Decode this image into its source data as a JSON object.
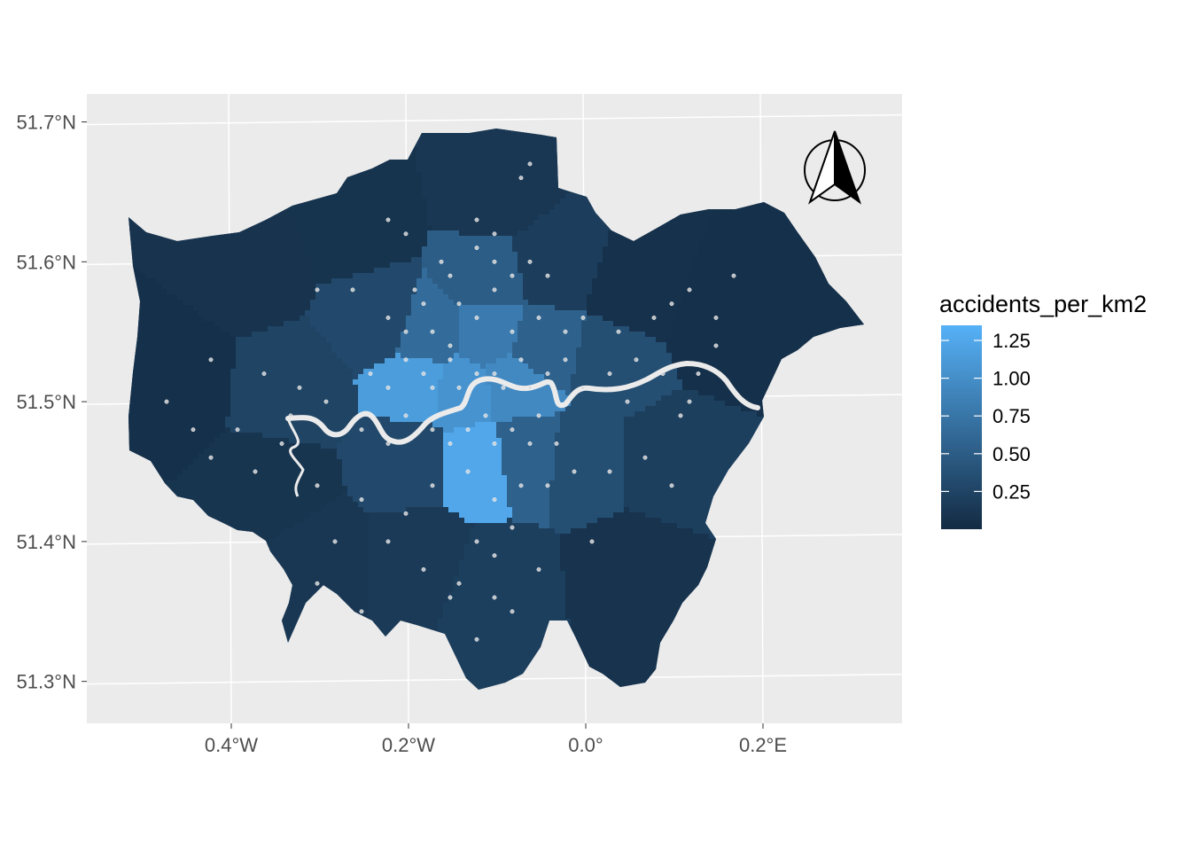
{
  "chart_data": {
    "type": "choropleth",
    "title": "",
    "xlabel": "",
    "ylabel": "",
    "graticule": {
      "lon_labels": [
        "0.4°W",
        "0.2°W",
        "0.0°",
        "0.2°E"
      ],
      "lon_values": [
        -0.4,
        -0.2,
        0.0,
        0.2
      ],
      "lat_labels": [
        "51.7°N",
        "51.6°N",
        "51.5°N",
        "51.4°N",
        "51.3°N"
      ],
      "lat_values": [
        51.7,
        51.6,
        51.5,
        51.4,
        51.3
      ]
    },
    "xlim": [
      -0.56,
      0.36
    ],
    "ylim": [
      51.27,
      51.72
    ],
    "fill_variable": "accidents_per_km2",
    "legend": {
      "title": "accidents_per_km2",
      "position": "right",
      "breaks": [
        "1.25",
        "1.00",
        "0.75",
        "0.50",
        "0.25"
      ],
      "break_values": [
        1.25,
        1.0,
        0.75,
        0.5,
        0.25
      ],
      "range": [
        0.0,
        1.35
      ],
      "color_low": "#132b43",
      "color_high": "#56b1f7"
    },
    "regions": [
      {
        "value": 0.05,
        "lon": -0.47,
        "lat": 51.52
      },
      {
        "value": 0.08,
        "lon": -0.38,
        "lat": 51.6
      },
      {
        "value": 0.09,
        "lon": -0.26,
        "lat": 51.63
      },
      {
        "value": 0.12,
        "lon": -0.1,
        "lat": 51.65
      },
      {
        "value": 0.18,
        "lon": -0.04,
        "lat": 51.6
      },
      {
        "value": 0.06,
        "lon": 0.06,
        "lat": 51.58
      },
      {
        "value": 0.05,
        "lon": 0.15,
        "lat": 51.56
      },
      {
        "value": 0.3,
        "lon": -0.23,
        "lat": 51.56
      },
      {
        "value": 0.5,
        "lon": -0.11,
        "lat": 51.59
      },
      {
        "value": 0.65,
        "lon": -0.18,
        "lat": 51.55
      },
      {
        "value": 0.8,
        "lon": -0.11,
        "lat": 51.55
      },
      {
        "value": 0.55,
        "lon": -0.05,
        "lat": 51.54
      },
      {
        "value": 0.35,
        "lon": 0.03,
        "lat": 51.53
      },
      {
        "value": 1.15,
        "lon": -0.19,
        "lat": 51.515
      },
      {
        "value": 1.05,
        "lon": -0.14,
        "lat": 51.51
      },
      {
        "value": 0.95,
        "lon": -0.08,
        "lat": 51.515
      },
      {
        "value": 0.25,
        "lon": -0.33,
        "lat": 51.51
      },
      {
        "value": 0.3,
        "lon": -0.2,
        "lat": 51.46
      },
      {
        "value": 1.25,
        "lon": -0.12,
        "lat": 51.46
      },
      {
        "value": 0.55,
        "lon": -0.07,
        "lat": 51.465
      },
      {
        "value": 0.35,
        "lon": 0.0,
        "lat": 51.46
      },
      {
        "value": 0.2,
        "lon": 0.09,
        "lat": 51.46
      },
      {
        "value": 0.1,
        "lon": -0.35,
        "lat": 51.44
      },
      {
        "value": 0.12,
        "lon": -0.3,
        "lat": 51.39
      },
      {
        "value": 0.15,
        "lon": -0.19,
        "lat": 51.39
      },
      {
        "value": 0.2,
        "lon": -0.1,
        "lat": 51.37
      },
      {
        "value": 0.08,
        "lon": 0.05,
        "lat": 51.38
      }
    ],
    "accidents": [
      [
        -0.06,
        51.67
      ],
      [
        -0.07,
        51.66
      ],
      [
        -0.12,
        51.63
      ],
      [
        -0.1,
        51.62
      ],
      [
        -0.2,
        51.62
      ],
      [
        -0.22,
        51.63
      ],
      [
        -0.1,
        51.6
      ],
      [
        -0.12,
        51.61
      ],
      [
        -0.08,
        51.59
      ],
      [
        -0.15,
        51.59
      ],
      [
        -0.06,
        51.6
      ],
      [
        -0.04,
        51.59
      ],
      [
        -0.3,
        51.58
      ],
      [
        -0.18,
        51.57
      ],
      [
        -0.14,
        51.57
      ],
      [
        -0.1,
        51.58
      ],
      [
        -0.12,
        51.56
      ],
      [
        -0.2,
        51.55
      ],
      [
        -0.22,
        51.56
      ],
      [
        -0.17,
        51.55
      ],
      [
        -0.15,
        51.54
      ],
      [
        -0.08,
        51.55
      ],
      [
        -0.05,
        51.56
      ],
      [
        -0.02,
        51.55
      ],
      [
        0.0,
        51.56
      ],
      [
        0.08,
        51.56
      ],
      [
        0.1,
        51.57
      ],
      [
        0.12,
        51.58
      ],
      [
        0.15,
        51.56
      ],
      [
        0.17,
        51.59
      ],
      [
        -0.24,
        51.52
      ],
      [
        -0.22,
        51.51
      ],
      [
        -0.2,
        51.53
      ],
      [
        -0.18,
        51.52
      ],
      [
        -0.17,
        51.51
      ],
      [
        -0.15,
        51.53
      ],
      [
        -0.14,
        51.51
      ],
      [
        -0.12,
        51.52
      ],
      [
        -0.1,
        51.52
      ],
      [
        -0.09,
        51.51
      ],
      [
        -0.07,
        51.53
      ],
      [
        -0.06,
        51.51
      ],
      [
        -0.04,
        51.52
      ],
      [
        -0.02,
        51.53
      ],
      [
        0.0,
        51.51
      ],
      [
        0.03,
        51.52
      ],
      [
        0.05,
        51.5
      ],
      [
        0.06,
        51.53
      ],
      [
        0.11,
        51.49
      ],
      [
        0.12,
        51.5
      ],
      [
        0.09,
        51.52
      ],
      [
        0.07,
        51.46
      ],
      [
        0.03,
        51.45
      ],
      [
        0.1,
        51.44
      ],
      [
        -0.36,
        51.52
      ],
      [
        -0.32,
        51.51
      ],
      [
        -0.29,
        51.5
      ],
      [
        -0.33,
        51.49
      ],
      [
        -0.42,
        51.53
      ],
      [
        -0.39,
        51.48
      ],
      [
        -0.47,
        51.5
      ],
      [
        -0.44,
        51.48
      ],
      [
        -0.42,
        51.46
      ],
      [
        -0.37,
        51.45
      ],
      [
        -0.34,
        51.47
      ],
      [
        -0.3,
        51.44
      ],
      [
        -0.25,
        51.48
      ],
      [
        -0.22,
        51.47
      ],
      [
        -0.2,
        51.49
      ],
      [
        -0.17,
        51.48
      ],
      [
        -0.15,
        51.47
      ],
      [
        -0.13,
        51.48
      ],
      [
        -0.11,
        51.49
      ],
      [
        -0.1,
        51.47
      ],
      [
        -0.08,
        51.48
      ],
      [
        -0.06,
        51.47
      ],
      [
        -0.05,
        51.49
      ],
      [
        -0.03,
        51.47
      ],
      [
        -0.01,
        51.45
      ],
      [
        -0.04,
        51.44
      ],
      [
        -0.07,
        51.44
      ],
      [
        -0.1,
        51.43
      ],
      [
        -0.13,
        51.45
      ],
      [
        -0.17,
        51.44
      ],
      [
        -0.2,
        51.42
      ],
      [
        -0.25,
        51.43
      ],
      [
        -0.28,
        51.4
      ],
      [
        -0.22,
        51.4
      ],
      [
        -0.18,
        51.38
      ],
      [
        -0.14,
        51.37
      ],
      [
        -0.1,
        51.39
      ],
      [
        -0.08,
        51.41
      ],
      [
        -0.12,
        51.4
      ],
      [
        -0.15,
        51.36
      ],
      [
        -0.1,
        51.36
      ],
      [
        -0.12,
        51.33
      ],
      [
        -0.08,
        51.35
      ],
      [
        -0.05,
        51.38
      ],
      [
        0.01,
        51.4
      ],
      [
        -0.03,
        51.34
      ],
      [
        -0.3,
        51.37
      ],
      [
        -0.25,
        51.35
      ],
      [
        0.15,
        51.54
      ],
      [
        0.13,
        51.52
      ],
      [
        0.04,
        51.55
      ],
      [
        -0.26,
        51.58
      ],
      [
        -0.19,
        51.58
      ],
      [
        -0.16,
        51.6
      ]
    ]
  },
  "ui": {
    "north_arrow_label": "N"
  }
}
